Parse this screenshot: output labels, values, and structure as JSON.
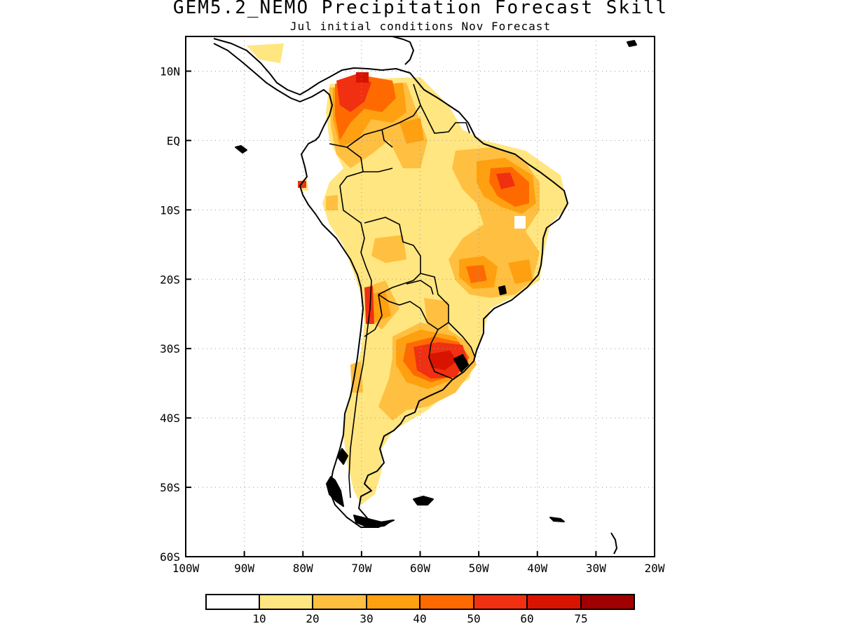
{
  "title": "GEM5.2_NEMO Precipitation Forecast Skill",
  "subtitle": "Jul initial conditions  Nov Forecast",
  "colors": {
    "land_outline": "#000000",
    "grid": "#999999",
    "bin_0_10": "#ffffff",
    "bin_10_20": "#ffe680",
    "bin_20_30": "#ffbf40",
    "bin_30_40": "#ffa010",
    "bin_40_50": "#ff6a00",
    "bin_50_60": "#f03010",
    "bin_60_75": "#d81400",
    "bin_75_plus": "#a00000"
  },
  "map": {
    "lon_range": [
      -100,
      -20
    ],
    "lat_range": [
      -60,
      15
    ],
    "lon_ticks": [
      "100W",
      "90W",
      "80W",
      "70W",
      "60W",
      "50W",
      "40W",
      "30W",
      "20W"
    ],
    "lat_ticks": [
      "10N",
      "EQ",
      "10S",
      "20S",
      "30S",
      "40S",
      "50S",
      "60S"
    ],
    "icons": [
      "south-america-coastline",
      "country-borders"
    ]
  },
  "legend": {
    "labels": [
      "10",
      "20",
      "30",
      "40",
      "50",
      "60",
      "75"
    ]
  }
}
